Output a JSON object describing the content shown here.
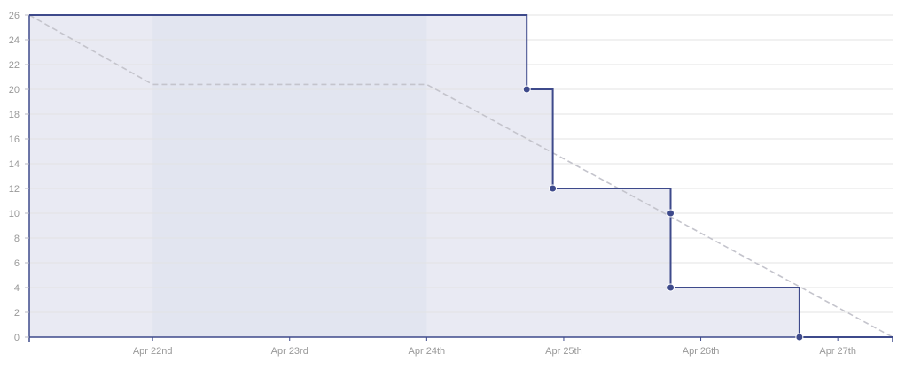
{
  "chart_data": {
    "type": "line",
    "title": "",
    "xlabel": "",
    "ylabel": "",
    "x_ticks": [
      "Apr 22nd",
      "Apr 23rd",
      "Apr 24th",
      "Apr 25th",
      "Apr 26th",
      "Apr 27th"
    ],
    "x_range": [
      21.1,
      27.4
    ],
    "y_ticks": [
      0,
      2,
      4,
      6,
      8,
      10,
      12,
      14,
      16,
      18,
      20,
      22,
      24,
      26
    ],
    "ylim": [
      0,
      26
    ],
    "grid": true,
    "non_working_period": [
      22.0,
      24.0
    ],
    "series": [
      {
        "name": "",
        "style": "step",
        "color": "#3e4a8b",
        "points": [
          {
            "x": 21.1,
            "y": 26
          },
          {
            "x": 24.73,
            "y": 20
          },
          {
            "x": 24.92,
            "y": 12
          },
          {
            "x": 25.78,
            "y": 10
          },
          {
            "x": 25.78,
            "y": 4
          },
          {
            "x": 26.72,
            "y": 0
          },
          {
            "x": 27.4,
            "y": 0
          }
        ],
        "markers": [
          {
            "x": 24.73,
            "y": 20
          },
          {
            "x": 24.92,
            "y": 12
          },
          {
            "x": 25.78,
            "y": 10
          },
          {
            "x": 25.78,
            "y": 4
          },
          {
            "x": 26.72,
            "y": 0
          }
        ]
      },
      {
        "name": "",
        "style": "dashed",
        "color": "#c4c4cc",
        "points": [
          {
            "x": 21.1,
            "y": 26
          },
          {
            "x": 22.0,
            "y": 20.4
          },
          {
            "x": 24.0,
            "y": 20.4
          },
          {
            "x": 27.4,
            "y": 0
          }
        ]
      }
    ],
    "colors": {
      "area_fill": "#e9eaf3",
      "non_working_fill": "#e2e5f0",
      "grid": "#e3e3e3",
      "axis": "#3e4a8b",
      "tick_text": "#999999"
    }
  }
}
